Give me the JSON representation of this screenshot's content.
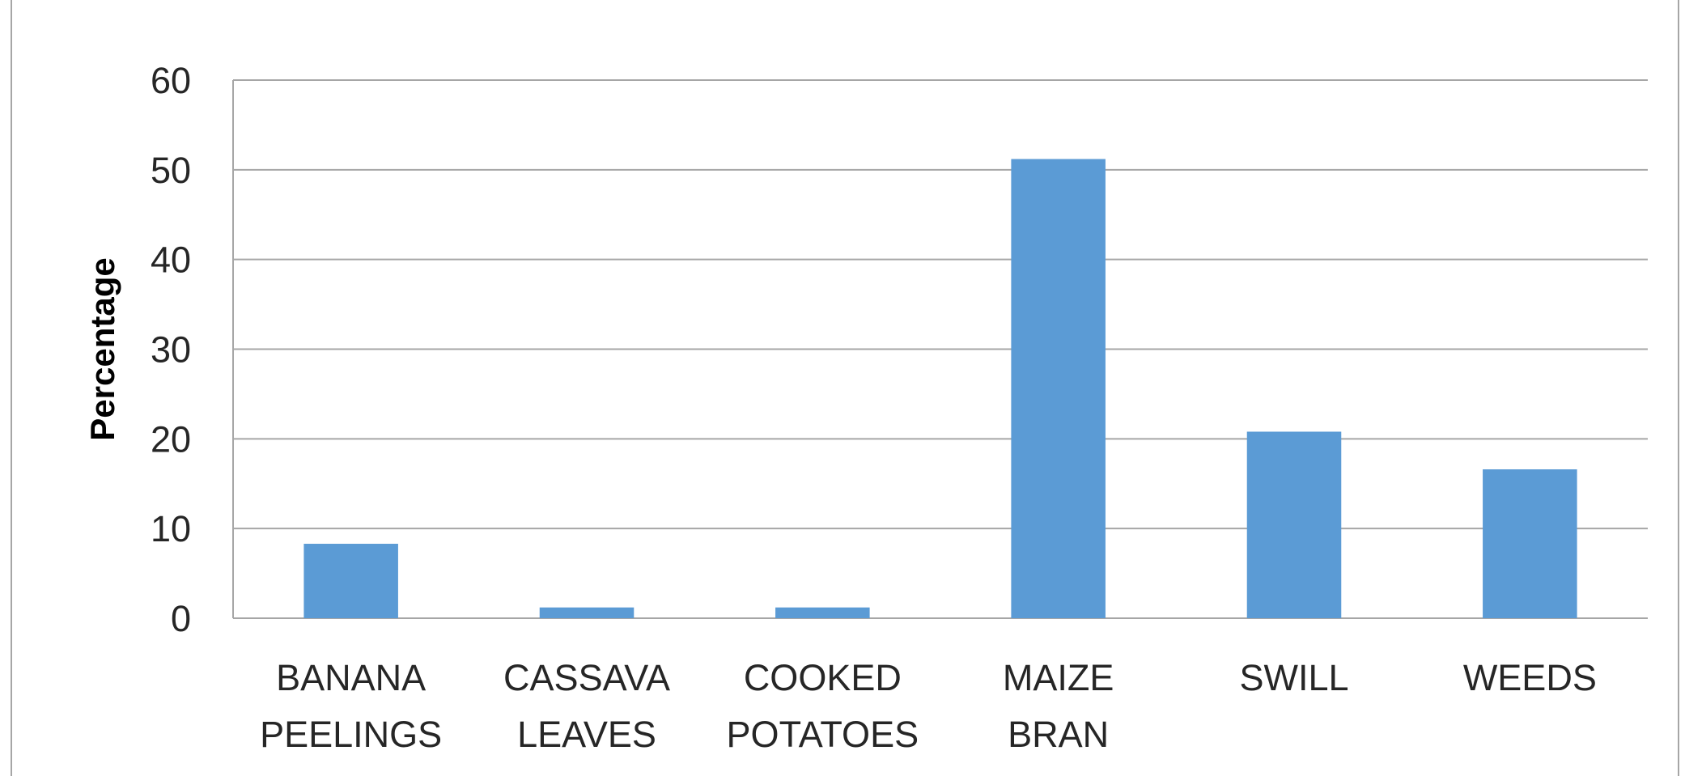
{
  "chart_data": {
    "type": "bar",
    "title": "",
    "xlabel": "",
    "ylabel": "Percentage",
    "categories": [
      [
        "BANANA",
        "PEELINGS"
      ],
      [
        "CASSAVA",
        "LEAVES"
      ],
      [
        "COOKED",
        "POTATOES"
      ],
      [
        "MAIZE",
        "BRAN"
      ],
      [
        "SWILL"
      ],
      [
        "WEEDS"
      ]
    ],
    "values": [
      8.3,
      1.2,
      1.2,
      51.2,
      20.8,
      16.6
    ],
    "ylim": [
      0,
      60
    ],
    "yticks": [
      0,
      10,
      20,
      30,
      40,
      50,
      60
    ],
    "grid": true,
    "legend": "none",
    "colors": {
      "bar": "#5B9BD5",
      "grid": "#A6A6A6",
      "frame": "#A6A6A6",
      "text": "#262626"
    }
  }
}
